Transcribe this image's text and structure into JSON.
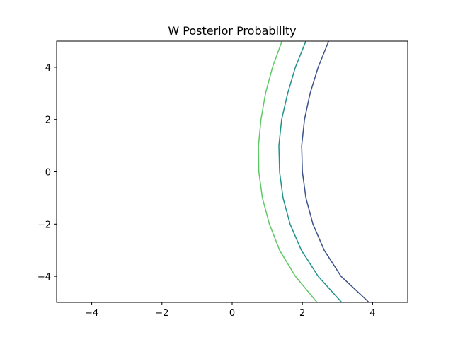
{
  "chart_data": {
    "type": "line",
    "title": "W Posterior Probability",
    "xlabel": "",
    "ylabel": "",
    "xlim": [
      -5,
      5
    ],
    "ylim": [
      -5,
      5
    ],
    "grid": false,
    "x_ticks": [
      -4,
      -2,
      0,
      2,
      4
    ],
    "y_ticks": [
      -4,
      -2,
      0,
      2,
      4
    ],
    "x_tick_labels": [
      "−4",
      "−2",
      "0",
      "2",
      "4"
    ],
    "y_tick_labels": [
      "−4",
      "−2",
      "0",
      "2",
      "4"
    ],
    "series": [
      {
        "color": "#3b528b",
        "points": [
          [
            2.75,
            5.0
          ],
          [
            2.45,
            4.0
          ],
          [
            2.22,
            3.0
          ],
          [
            2.06,
            2.0
          ],
          [
            1.98,
            1.0
          ],
          [
            2.0,
            0.0
          ],
          [
            2.1,
            -1.0
          ],
          [
            2.3,
            -2.0
          ],
          [
            2.62,
            -3.0
          ],
          [
            3.1,
            -4.0
          ],
          [
            3.9,
            -5.0
          ]
        ]
      },
      {
        "color": "#21918c",
        "points": [
          [
            2.1,
            5.0
          ],
          [
            1.8,
            4.0
          ],
          [
            1.58,
            3.0
          ],
          [
            1.41,
            2.0
          ],
          [
            1.33,
            1.0
          ],
          [
            1.35,
            0.0
          ],
          [
            1.45,
            -1.0
          ],
          [
            1.65,
            -2.0
          ],
          [
            1.97,
            -3.0
          ],
          [
            2.45,
            -4.0
          ],
          [
            3.12,
            -5.0
          ]
        ]
      },
      {
        "color": "#5ec962",
        "points": [
          [
            1.42,
            5.0
          ],
          [
            1.15,
            4.0
          ],
          [
            0.95,
            3.0
          ],
          [
            0.82,
            2.0
          ],
          [
            0.75,
            1.0
          ],
          [
            0.76,
            0.0
          ],
          [
            0.86,
            -1.0
          ],
          [
            1.06,
            -2.0
          ],
          [
            1.35,
            -3.0
          ],
          [
            1.8,
            -4.0
          ],
          [
            2.42,
            -5.0
          ]
        ]
      }
    ]
  }
}
